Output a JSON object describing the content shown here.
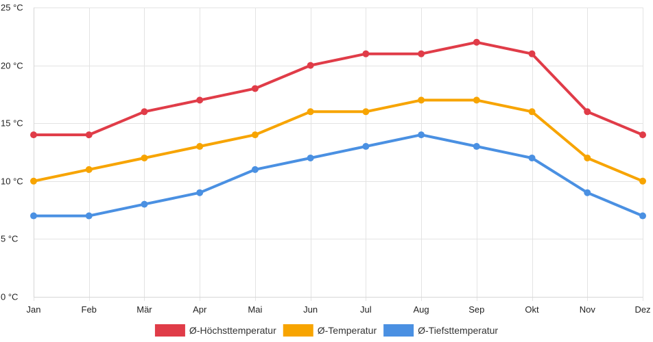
{
  "chart_data": {
    "type": "line",
    "title": "",
    "xlabel": "",
    "ylabel": "",
    "categories": [
      "Jan",
      "Feb",
      "Mär",
      "Apr",
      "Mai",
      "Jun",
      "Jul",
      "Aug",
      "Sep",
      "Okt",
      "Nov",
      "Dez"
    ],
    "ylim": [
      0,
      25
    ],
    "yticks": [
      0,
      5,
      10,
      15,
      20,
      25
    ],
    "y_unit": "°C",
    "grid": true,
    "legend_position": "bottom",
    "series": [
      {
        "name": "Ø-Höchsttemperatur",
        "color": "#e03c48",
        "values": [
          14,
          14,
          16,
          17,
          18,
          20,
          21,
          21,
          22,
          21,
          16,
          14
        ]
      },
      {
        "name": "Ø-Temperatur",
        "color": "#f7a400",
        "values": [
          10,
          11,
          12,
          13,
          14,
          16,
          16,
          17,
          17,
          16,
          12,
          10
        ]
      },
      {
        "name": "Ø-Tiefsttemperatur",
        "color": "#4a90e2",
        "values": [
          7,
          7,
          8,
          9,
          11,
          12,
          13,
          14,
          13,
          12,
          9,
          7
        ]
      }
    ]
  }
}
